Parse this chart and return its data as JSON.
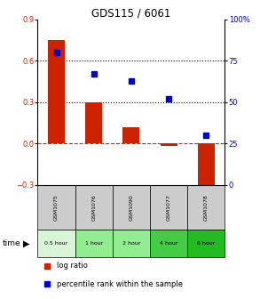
{
  "title": "GDS115 / 6061",
  "samples": [
    "GSM1075",
    "GSM1076",
    "GSM1090",
    "GSM1077",
    "GSM1078"
  ],
  "time_labels": [
    "0.5 hour",
    "1 hour",
    "2 hour",
    "4 hour",
    "6 hour"
  ],
  "log_ratio": [
    0.75,
    0.3,
    0.12,
    -0.02,
    -0.35
  ],
  "percentile": [
    80,
    67,
    63,
    52,
    30
  ],
  "ylim_left": [
    -0.3,
    0.9
  ],
  "ylim_right": [
    0,
    100
  ],
  "bar_color": "#cc2200",
  "dot_color": "#0000cc",
  "hline_y_left": [
    0.6,
    0.3
  ],
  "left_yticks": [
    -0.3,
    0.0,
    0.3,
    0.6,
    0.9
  ],
  "right_yticks": [
    0,
    25,
    50,
    75,
    100
  ],
  "left_tick_color": "#cc2200",
  "right_tick_color": "#0000cc",
  "sample_bg_color": "#cccccc",
  "sample_border_color": "#000000",
  "time_row_colors": [
    "#d8f5d8",
    "#90ee90",
    "#90ee90",
    "#44cc44",
    "#22bb22"
  ],
  "legend_log_ratio_color": "#cc2200",
  "legend_percentile_color": "#0000cc"
}
